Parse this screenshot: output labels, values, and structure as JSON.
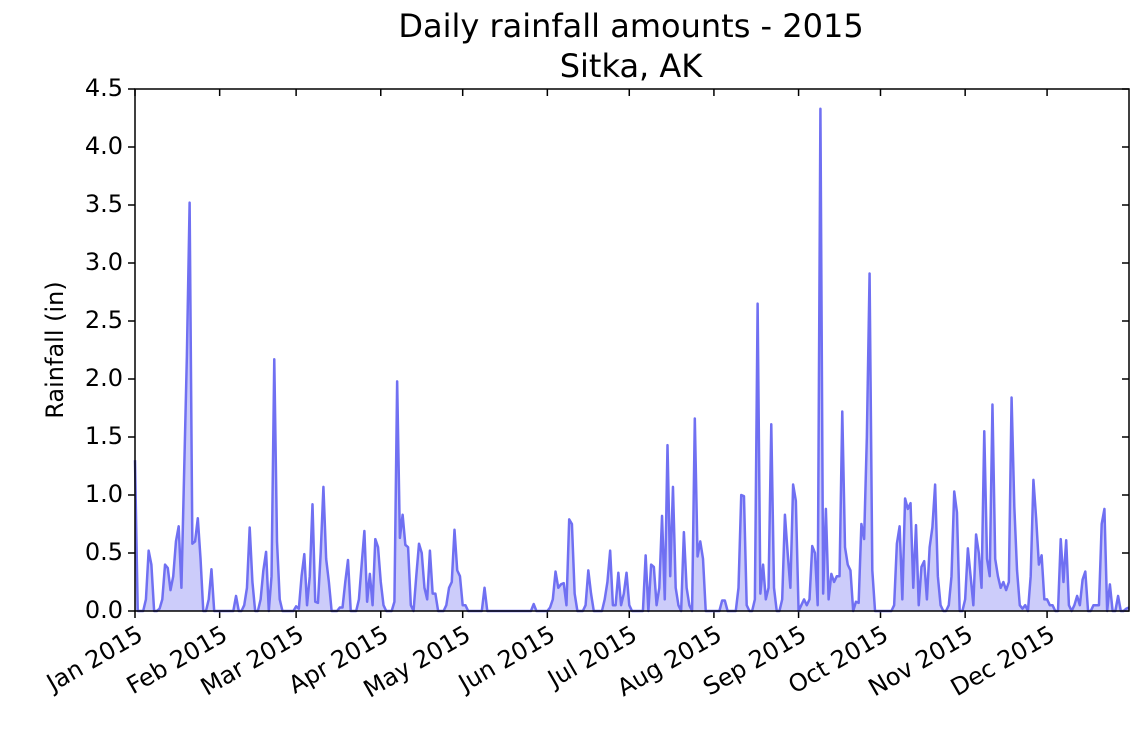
{
  "chart_data": {
    "type": "area",
    "title": "Daily rainfall amounts - 2015",
    "subtitle": "Sitka, AK",
    "ylabel": "Rainfall (in)",
    "color": "#7070f2",
    "fill": "#ccccfa",
    "xlim": [
      0,
      364
    ],
    "ylim": [
      0,
      4.5
    ],
    "xticks": [
      {
        "value": 0,
        "label": "Jan 2015"
      },
      {
        "value": 31,
        "label": "Feb 2015"
      },
      {
        "value": 59,
        "label": "Mar 2015"
      },
      {
        "value": 90,
        "label": "Apr 2015"
      },
      {
        "value": 120,
        "label": "May 2015"
      },
      {
        "value": 151,
        "label": "Jun 2015"
      },
      {
        "value": 181,
        "label": "Jul 2015"
      },
      {
        "value": 212,
        "label": "Aug 2015"
      },
      {
        "value": 243,
        "label": "Sep 2015"
      },
      {
        "value": 273,
        "label": "Oct 2015"
      },
      {
        "value": 304,
        "label": "Nov 2015"
      },
      {
        "value": 334,
        "label": "Dec 2015"
      }
    ],
    "yticks": [
      {
        "value": 0,
        "label": "0.0"
      },
      0.5,
      {
        "value": 1,
        "label": "1.0"
      },
      1.5,
      {
        "value": 2,
        "label": "2.0"
      },
      2.5,
      {
        "value": 3,
        "label": "3.0"
      },
      3.5,
      {
        "value": 4,
        "label": "4.0"
      },
      4.5
    ],
    "x": [
      0,
      1,
      2,
      3,
      4,
      5,
      6,
      7,
      8,
      9,
      10,
      11,
      12,
      13,
      14,
      15,
      16,
      17,
      18,
      19,
      20,
      21,
      22,
      23,
      24,
      25,
      26,
      27,
      28,
      29,
      30,
      31,
      32,
      33,
      34,
      35,
      36,
      37,
      38,
      39,
      40,
      41,
      42,
      43,
      44,
      45,
      46,
      47,
      48,
      49,
      50,
      51,
      52,
      53,
      54,
      55,
      56,
      57,
      58,
      59,
      60,
      61,
      62,
      63,
      64,
      65,
      66,
      67,
      68,
      69,
      70,
      71,
      72,
      73,
      74,
      75,
      76,
      77,
      78,
      79,
      80,
      81,
      82,
      83,
      84,
      85,
      86,
      87,
      88,
      89,
      90,
      91,
      92,
      93,
      94,
      95,
      96,
      97,
      98,
      99,
      100,
      101,
      102,
      103,
      104,
      105,
      106,
      107,
      108,
      109,
      110,
      111,
      112,
      113,
      114,
      115,
      116,
      117,
      118,
      119,
      120,
      121,
      122,
      123,
      124,
      125,
      126,
      127,
      128,
      129,
      130,
      131,
      132,
      133,
      134,
      135,
      136,
      137,
      138,
      139,
      140,
      141,
      142,
      143,
      144,
      145,
      146,
      147,
      148,
      149,
      150,
      151,
      152,
      153,
      154,
      155,
      156,
      157,
      158,
      159,
      160,
      161,
      162,
      163,
      164,
      165,
      166,
      167,
      168,
      169,
      170,
      171,
      172,
      173,
      174,
      175,
      176,
      177,
      178,
      179,
      180,
      181,
      182,
      183,
      184,
      185,
      186,
      187,
      188,
      189,
      190,
      191,
      192,
      193,
      194,
      195,
      196,
      197,
      198,
      199,
      200,
      201,
      202,
      203,
      204,
      205,
      206,
      207,
      208,
      209,
      210,
      211,
      212,
      213,
      214,
      215,
      216,
      217,
      218,
      219,
      220,
      221,
      222,
      223,
      224,
      225,
      226,
      227,
      228,
      229,
      230,
      231,
      232,
      233,
      234,
      235,
      236,
      237,
      238,
      239,
      240,
      241,
      242,
      243,
      244,
      245,
      246,
      247,
      248,
      249,
      250,
      251,
      252,
      253,
      254,
      255,
      256,
      257,
      258,
      259,
      260,
      261,
      262,
      263,
      264,
      265,
      266,
      267,
      268,
      269,
      270,
      271,
      272,
      273,
      274,
      275,
      276,
      277,
      278,
      279,
      280,
      281,
      282,
      283,
      284,
      285,
      286,
      287,
      288,
      289,
      290,
      291,
      292,
      293,
      294,
      295,
      296,
      297,
      298,
      299,
      300,
      301,
      302,
      303,
      304,
      305,
      306,
      307,
      308,
      309,
      310,
      311,
      312,
      313,
      314,
      315,
      316,
      317,
      318,
      319,
      320,
      321,
      322,
      323,
      324,
      325,
      326,
      327,
      328,
      329,
      330,
      331,
      332,
      333,
      334,
      335,
      336,
      337,
      338,
      339,
      340,
      341,
      342,
      343,
      344,
      345,
      346,
      347,
      348,
      349,
      350,
      351,
      352,
      353,
      354,
      355,
      356,
      357,
      358,
      359,
      360,
      361,
      362,
      363,
      364
    ],
    "values": [
      1.3,
      0,
      0,
      0,
      0.1,
      0.52,
      0.4,
      0,
      0,
      0.02,
      0.1,
      0.4,
      0.37,
      0.18,
      0.3,
      0.6,
      0.73,
      0.2,
      1.2,
      2.2,
      3.52,
      0.58,
      0.6,
      0.8,
      0.45,
      0,
      0,
      0.1,
      0.36,
      0,
      0,
      0,
      0,
      0,
      0,
      0,
      0,
      0.13,
      0,
      0,
      0.05,
      0.2,
      0.72,
      0.25,
      0,
      0,
      0.1,
      0.35,
      0.51,
      0,
      0.3,
      2.17,
      0.6,
      0.1,
      0,
      0,
      0,
      0,
      0,
      0.04,
      0.02,
      0.3,
      0.49,
      0.05,
      0.3,
      0.92,
      0.08,
      0.07,
      0.5,
      1.07,
      0.45,
      0.25,
      0,
      0,
      0,
      0.03,
      0.03,
      0.25,
      0.44,
      0,
      0,
      0,
      0.1,
      0.4,
      0.69,
      0.08,
      0.32,
      0.05,
      0.62,
      0.55,
      0.25,
      0.05,
      0,
      0,
      0,
      0.08,
      1.98,
      0.63,
      0.83,
      0.57,
      0.55,
      0.05,
      0,
      0.3,
      0.58,
      0.5,
      0.2,
      0.1,
      0.52,
      0.15,
      0.15,
      0,
      0,
      0,
      0.05,
      0.2,
      0.25,
      0.7,
      0.35,
      0.3,
      0.05,
      0.05,
      0,
      0,
      0,
      0,
      0,
      0,
      0.2,
      0,
      0,
      0,
      0,
      0,
      0,
      0,
      0,
      0,
      0,
      0,
      0,
      0,
      0,
      0,
      0,
      0,
      0.06,
      0,
      0,
      0,
      0,
      0,
      0.03,
      0.1,
      0.34,
      0.2,
      0.23,
      0.24,
      0.05,
      0.79,
      0.75,
      0.15,
      0,
      0,
      0,
      0.05,
      0.35,
      0.15,
      0,
      0,
      0,
      0,
      0.1,
      0.25,
      0.52,
      0.05,
      0.05,
      0.33,
      0.05,
      0.15,
      0.33,
      0.05,
      0,
      0,
      0,
      0,
      0,
      0.48,
      0,
      0.4,
      0.38,
      0.05,
      0.2,
      0.82,
      0.1,
      1.43,
      0.3,
      1.07,
      0.2,
      0.05,
      0,
      0.68,
      0.2,
      0.05,
      0,
      1.66,
      0.47,
      0.6,
      0.45,
      0,
      0,
      0,
      0,
      0,
      0,
      0.09,
      0.09,
      0,
      0,
      0,
      0,
      0.2,
      1.0,
      0.99,
      0.05,
      0,
      0,
      0.1,
      2.65,
      0.15,
      0.4,
      0.1,
      0.2,
      1.61,
      0.2,
      0,
      0,
      0.1,
      0.83,
      0.5,
      0.2,
      1.09,
      0.95,
      0,
      0.05,
      0.1,
      0.05,
      0.1,
      0.56,
      0.5,
      0.05,
      4.33,
      0.15,
      0.88,
      0.1,
      0.32,
      0.25,
      0.3,
      0.3,
      1.72,
      0.55,
      0.4,
      0.35,
      0,
      0.08,
      0.07,
      0.75,
      0.62,
      1.5,
      2.91,
      0.35,
      0,
      0,
      0,
      0,
      0,
      0,
      0,
      0.05,
      0.58,
      0.73,
      0.1,
      0.97,
      0.88,
      0.93,
      0.2,
      0.74,
      0.05,
      0.38,
      0.43,
      0.1,
      0.55,
      0.72,
      1.09,
      0.3,
      0.05,
      0,
      0,
      0.05,
      0.3,
      1.03,
      0.85,
      0,
      0,
      0.1,
      0.54,
      0.3,
      0.05,
      0.66,
      0.5,
      0.2,
      1.55,
      0.45,
      0.3,
      1.78,
      0.45,
      0.3,
      0.2,
      0.25,
      0.18,
      0.25,
      1.84,
      0.9,
      0.35,
      0.05,
      0.02,
      0.05,
      0,
      0.3,
      1.13,
      0.8,
      0.4,
      0.48,
      0.1,
      0.1,
      0.05,
      0.05,
      0,
      0,
      0.62,
      0.25,
      0.61,
      0.05,
      0,
      0.05,
      0.13,
      0.05,
      0.27,
      0.34,
      0,
      0,
      0.05,
      0.05,
      0.05,
      0.75,
      0.88,
      0,
      0.23,
      0,
      0,
      0.13,
      0,
      0,
      0.02,
      0.03
    ]
  }
}
